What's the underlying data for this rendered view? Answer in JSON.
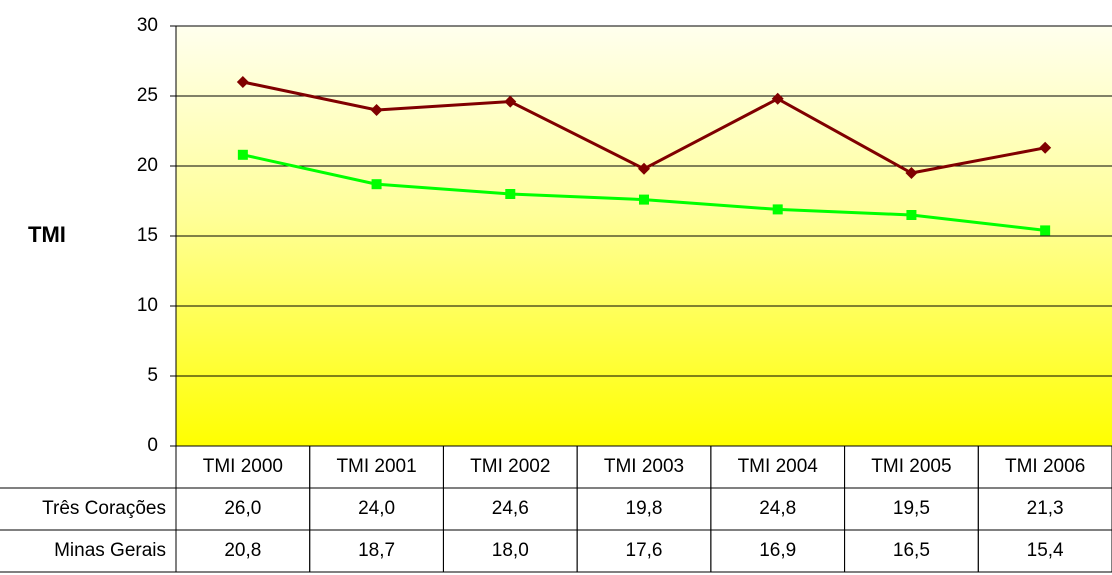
{
  "chart_data": {
    "type": "line",
    "y_label": "TMI",
    "categories": [
      "TMI 2000",
      "TMI 2001",
      "TMI 2002",
      "TMI 2003",
      "TMI 2004",
      "TMI 2005",
      "TMI 2006"
    ],
    "series": [
      {
        "name": "Três Corações",
        "color": "#800000",
        "marker": "diamond",
        "values": [
          26.0,
          24.0,
          24.6,
          19.8,
          24.8,
          19.5,
          21.3
        ],
        "value_labels": [
          "26,0",
          "24,0",
          "24,6",
          "19,8",
          "24,8",
          "19,5",
          "21,3"
        ]
      },
      {
        "name": "Minas Gerais",
        "color": "#00ff00",
        "marker": "square",
        "values": [
          20.8,
          18.7,
          18.0,
          17.6,
          16.9,
          16.5,
          15.4
        ],
        "value_labels": [
          "20,8",
          "18,7",
          "18,0",
          "17,6",
          "16,9",
          "16,5",
          "15,4"
        ]
      }
    ],
    "ylim": [
      0,
      30
    ],
    "yticks": [
      0,
      5,
      10,
      15,
      20,
      25,
      30
    ],
    "grid": true
  }
}
